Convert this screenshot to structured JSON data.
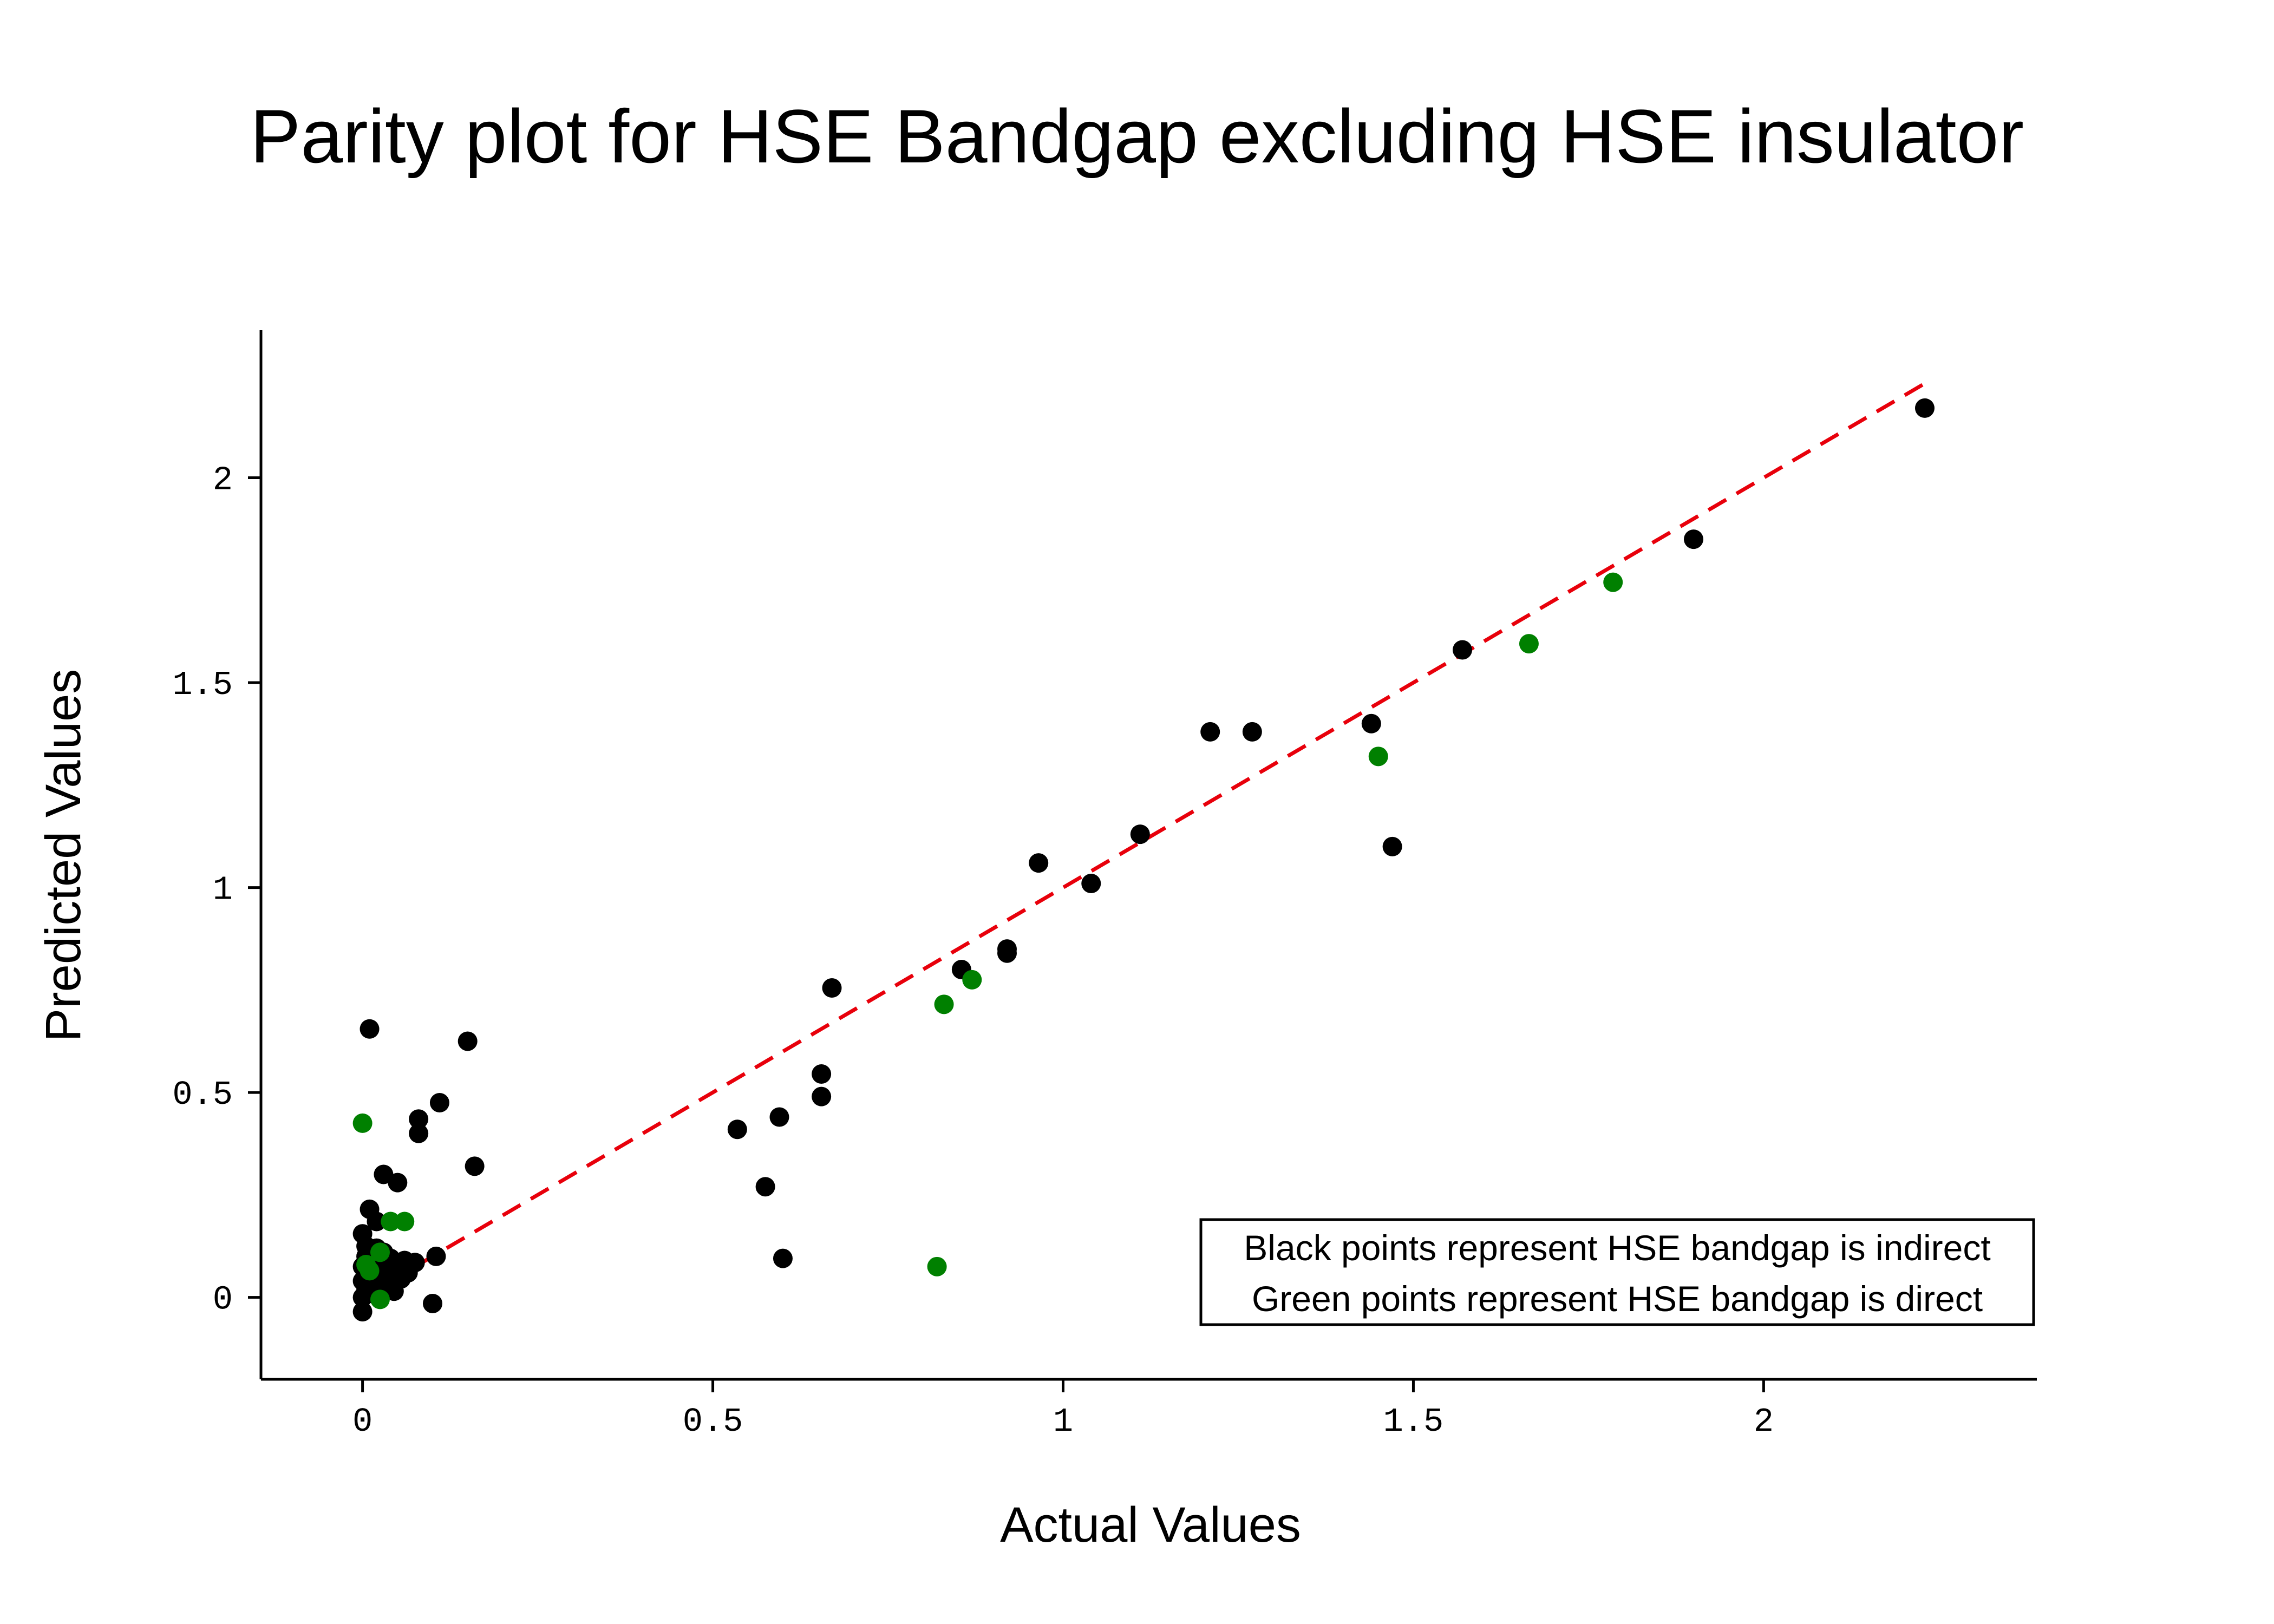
{
  "chart_data": {
    "type": "scatter",
    "title": "Parity plot for HSE Bandgap excluding HSE insulator",
    "xlabel": "Actual Values",
    "ylabel": "Predicted Values",
    "xlim": [
      -0.145,
      2.39
    ],
    "ylim": [
      -0.2,
      2.36
    ],
    "xticks": [
      0,
      0.5,
      1,
      1.5,
      2
    ],
    "xtick_labels": [
      "0",
      "0.5",
      "1",
      "1.5",
      "2"
    ],
    "yticks": [
      0,
      0.5,
      1,
      1.5,
      2
    ],
    "ytick_labels": [
      "0",
      "0.5",
      "1",
      "1.5",
      "2"
    ],
    "grid": false,
    "parity_line": {
      "x": [
        0,
        2.23
      ],
      "y": [
        0,
        2.23
      ],
      "color": "#e8000b",
      "style": "dashed"
    },
    "legend": {
      "placement": "lower-right",
      "lines": [
        "Black points represent HSE bandgap is indirect",
        "Green points represent HSE bandgap is direct"
      ]
    },
    "series": [
      {
        "color": "#000000",
        "points": [
          [
            2.23,
            2.17
          ],
          [
            1.9,
            1.85
          ],
          [
            1.57,
            1.58
          ],
          [
            1.44,
            1.4
          ],
          [
            1.27,
            1.38
          ],
          [
            1.21,
            1.38
          ],
          [
            1.47,
            1.1
          ],
          [
            1.11,
            1.13
          ],
          [
            1.04,
            1.01
          ],
          [
            0.965,
            1.06
          ],
          [
            0.92,
            0.85
          ],
          [
            0.92,
            0.84
          ],
          [
            0.855,
            0.8
          ],
          [
            0.67,
            0.755
          ],
          [
            0.655,
            0.545
          ],
          [
            0.655,
            0.49
          ],
          [
            0.595,
            0.44
          ],
          [
            0.535,
            0.41
          ],
          [
            0.575,
            0.27
          ],
          [
            0.6,
            0.095
          ],
          [
            0.15,
            0.625
          ],
          [
            0.16,
            0.32
          ],
          [
            0.11,
            0.475
          ],
          [
            0.08,
            0.435
          ],
          [
            0.08,
            0.4
          ],
          [
            0.05,
            0.28
          ],
          [
            0.03,
            0.3
          ],
          [
            0.01,
            0.655
          ],
          [
            0.01,
            0.215
          ],
          [
            0.02,
            0.185
          ],
          [
            0.0,
            0.155
          ],
          [
            0.005,
            0.125
          ],
          [
            0.02,
            0.12
          ],
          [
            0.03,
            0.11
          ],
          [
            0.005,
            0.1
          ],
          [
            0.04,
            0.095
          ],
          [
            0.06,
            0.09
          ],
          [
            0.075,
            0.085
          ],
          [
            0.105,
            0.1
          ],
          [
            0.0,
            0.075
          ],
          [
            0.015,
            0.07
          ],
          [
            0.03,
            0.065
          ],
          [
            0.05,
            0.06
          ],
          [
            0.065,
            0.06
          ],
          [
            0.0,
            0.04
          ],
          [
            0.02,
            0.04
          ],
          [
            0.04,
            0.035
          ],
          [
            0.055,
            0.045
          ],
          [
            0.005,
            0.02
          ],
          [
            0.03,
            0.02
          ],
          [
            0.045,
            0.015
          ],
          [
            0.0,
            0.0
          ],
          [
            0.02,
            0.005
          ],
          [
            0.1,
            -0.015
          ],
          [
            0.0,
            -0.035
          ]
        ]
      },
      {
        "color": "#008000",
        "points": [
          [
            1.785,
            1.745
          ],
          [
            1.665,
            1.595
          ],
          [
            1.45,
            1.32
          ],
          [
            0.87,
            0.775
          ],
          [
            0.83,
            0.715
          ],
          [
            0.82,
            0.075
          ],
          [
            0.0,
            0.425
          ],
          [
            0.04,
            0.185
          ],
          [
            0.06,
            0.185
          ],
          [
            0.025,
            0.11
          ],
          [
            0.005,
            0.08
          ],
          [
            0.01,
            0.065
          ],
          [
            0.025,
            -0.005
          ]
        ]
      }
    ]
  }
}
